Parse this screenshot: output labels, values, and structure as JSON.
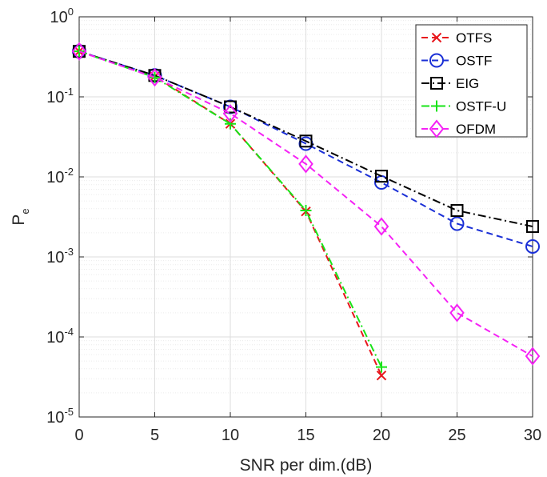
{
  "chart_data": {
    "type": "line",
    "xlabel": "SNR per dim.(dB)",
    "ylabel": {
      "main": "P",
      "sub": "e"
    },
    "yscale": "log",
    "xlim": [
      0,
      30
    ],
    "ylim": [
      1e-05,
      1
    ],
    "x_ticks": [
      0,
      5,
      10,
      15,
      20,
      25,
      30
    ],
    "x_tick_labels": [
      "0",
      "5",
      "10",
      "15",
      "20",
      "25",
      "30"
    ],
    "y_ticks": [
      {
        "value": 1,
        "base": "10",
        "exp": "0"
      },
      {
        "value": 0.1,
        "base": "10",
        "exp": "-1"
      },
      {
        "value": 0.01,
        "base": "10",
        "exp": "-2"
      },
      {
        "value": 0.001,
        "base": "10",
        "exp": "-3"
      },
      {
        "value": 0.0001,
        "base": "10",
        "exp": "-4"
      },
      {
        "value": 1e-05,
        "base": "10",
        "exp": "-5"
      }
    ],
    "grid": true,
    "legend_position": "top-right",
    "series": [
      {
        "name": "OTFS",
        "color": "#e8161c",
        "dash": "dashed",
        "marker": "x",
        "x": [
          0,
          5,
          10,
          15,
          20
        ],
        "y": [
          0.37,
          0.18,
          0.046,
          0.0037,
          3.3e-05
        ]
      },
      {
        "name": "OSTF",
        "color": "#1a2fd6",
        "dash": "dashed",
        "marker": "circle",
        "x": [
          0,
          5,
          10,
          15,
          20,
          25,
          30
        ],
        "y": [
          0.37,
          0.185,
          0.075,
          0.026,
          0.0085,
          0.0026,
          0.00135
        ]
      },
      {
        "name": "EIG",
        "color": "#000000",
        "dash": "dashdot",
        "marker": "square",
        "x": [
          0,
          5,
          10,
          15,
          20,
          25,
          30
        ],
        "y": [
          0.37,
          0.185,
          0.075,
          0.028,
          0.0102,
          0.0038,
          0.0024
        ]
      },
      {
        "name": "OSTF-U",
        "color": "#17e317",
        "dash": "dashdot",
        "marker": "plus",
        "x": [
          0,
          5,
          10,
          15,
          20
        ],
        "y": [
          0.37,
          0.175,
          0.046,
          0.0038,
          4.2e-05
        ]
      },
      {
        "name": "OFDM",
        "color": "#f522f5",
        "dash": "dashed",
        "marker": "diamond",
        "x": [
          0,
          5,
          10,
          15,
          20,
          25,
          30
        ],
        "y": [
          0.37,
          0.175,
          0.062,
          0.0145,
          0.0024,
          0.0002,
          5.75e-05
        ]
      }
    ]
  }
}
